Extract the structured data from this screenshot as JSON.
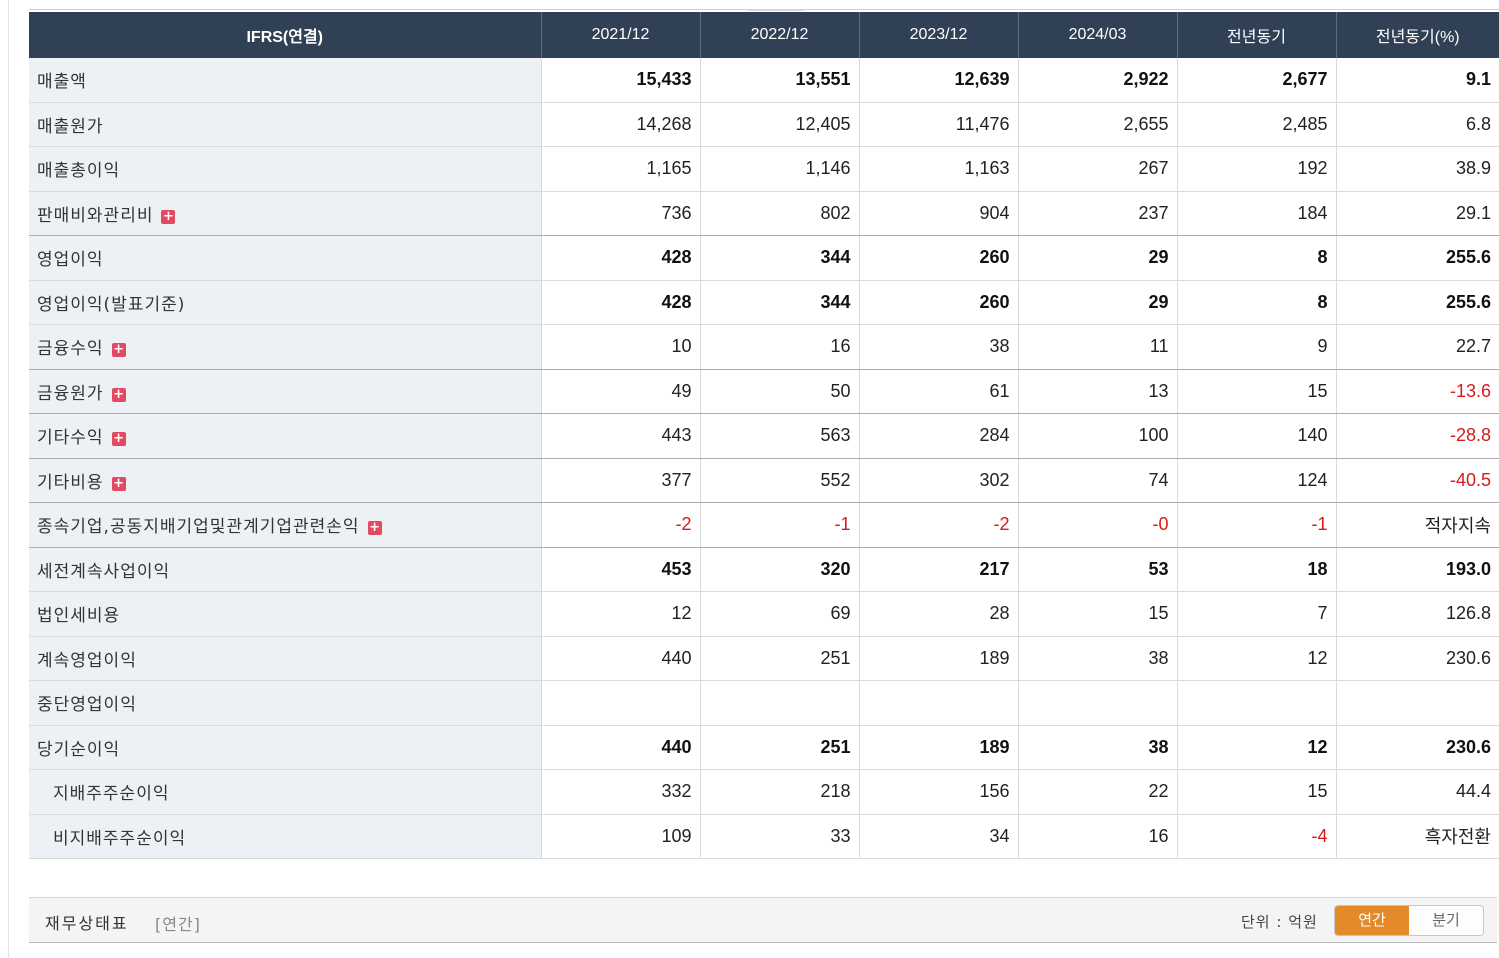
{
  "table": {
    "headers": [
      "IFRS(연결)",
      "2021/12",
      "2022/12",
      "2023/12",
      "2024/03",
      "전년동기",
      "전년동기(%)"
    ],
    "rows": [
      {
        "label": "매출액",
        "values": [
          "15,433",
          "13,551",
          "12,639",
          "2,922",
          "2,677",
          "9.1"
        ]
      },
      {
        "label": "매출원가",
        "values": [
          "14,268",
          "12,405",
          "11,476",
          "2,655",
          "2,485",
          "6.8"
        ]
      },
      {
        "label": "매출총이익",
        "values": [
          "1,165",
          "1,146",
          "1,163",
          "267",
          "192",
          "38.9"
        ]
      },
      {
        "label": "판매비와관리비",
        "values": [
          "736",
          "802",
          "904",
          "237",
          "184",
          "29.1"
        ]
      },
      {
        "label": "영업이익",
        "values": [
          "428",
          "344",
          "260",
          "29",
          "8",
          "255.6"
        ]
      },
      {
        "label": "영업이익(발표기준)",
        "values": [
          "428",
          "344",
          "260",
          "29",
          "8",
          "255.6"
        ]
      },
      {
        "label": "금융수익",
        "values": [
          "10",
          "16",
          "38",
          "11",
          "9",
          "22.7"
        ]
      },
      {
        "label": "금융원가",
        "values": [
          "49",
          "50",
          "61",
          "13",
          "15",
          "-13.6"
        ]
      },
      {
        "label": "기타수익",
        "values": [
          "443",
          "563",
          "284",
          "100",
          "140",
          "-28.8"
        ]
      },
      {
        "label": "기타비용",
        "values": [
          "377",
          "552",
          "302",
          "74",
          "124",
          "-40.5"
        ]
      },
      {
        "label": "종속기업,공동지배기업및관계기업관련손익",
        "values": [
          "-2",
          "-1",
          "-2",
          "-0",
          "-1",
          "적자지속"
        ]
      },
      {
        "label": "세전계속사업이익",
        "values": [
          "453",
          "320",
          "217",
          "53",
          "18",
          "193.0"
        ]
      },
      {
        "label": "법인세비용",
        "values": [
          "12",
          "69",
          "28",
          "15",
          "7",
          "126.8"
        ]
      },
      {
        "label": "계속영업이익",
        "values": [
          "440",
          "251",
          "189",
          "38",
          "12",
          "230.6"
        ]
      },
      {
        "label": "중단영업이익",
        "values": [
          "",
          "",
          "",
          "",
          "",
          ""
        ]
      },
      {
        "label": "당기순이익",
        "values": [
          "440",
          "251",
          "189",
          "38",
          "12",
          "230.6"
        ]
      },
      {
        "label": "지배주주순이익",
        "values": [
          "332",
          "218",
          "156",
          "22",
          "15",
          "44.4"
        ]
      },
      {
        "label": "비지배주주순이익",
        "values": [
          "109",
          "33",
          "34",
          "16",
          "-4",
          "흑자전환"
        ]
      }
    ]
  },
  "footer": {
    "title": "재무상태표",
    "period": "[연간]",
    "unit": "단위 : 억원",
    "toggle_annual": "연간",
    "toggle_quarter": "분기"
  },
  "colors": {
    "header_bg": "#304055",
    "label_bg": "#edf1f5",
    "negative": "#d71a1a",
    "toggle_active": "#e58a2a",
    "expand_icon": "#e14a62"
  },
  "icons": {
    "expand": "plus-icon"
  }
}
